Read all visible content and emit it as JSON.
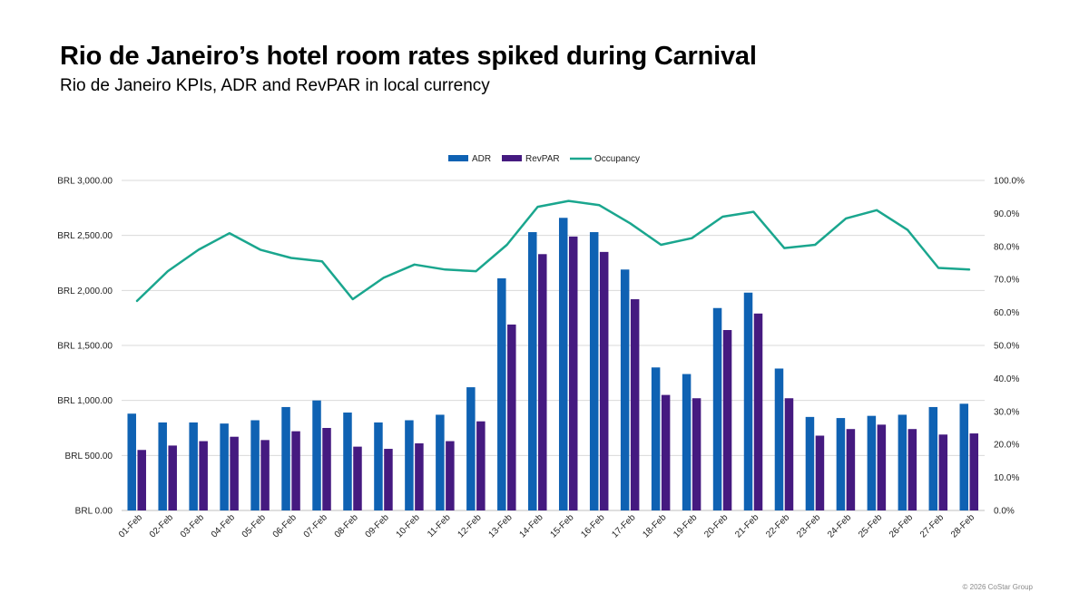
{
  "title": "Rio de Janeiro’s hotel room rates spiked during Carnival",
  "subtitle": "Rio de Janeiro KPIs, ADR and RevPAR in local currency",
  "copyright": "© 2026 CoStar Group",
  "colors": {
    "adr": "#0f62b3",
    "revpar": "#451a80",
    "occupancy": "#1aa68e",
    "grid": "#d9d9d9"
  },
  "chart_data": {
    "type": "bar",
    "categories": [
      "01-Feb",
      "02-Feb",
      "03-Feb",
      "04-Feb",
      "05-Feb",
      "06-Feb",
      "07-Feb",
      "08-Feb",
      "09-Feb",
      "10-Feb",
      "11-Feb",
      "12-Feb",
      "13-Feb",
      "14-Feb",
      "15-Feb",
      "16-Feb",
      "17-Feb",
      "18-Feb",
      "19-Feb",
      "20-Feb",
      "21-Feb",
      "22-Feb",
      "23-Feb",
      "24-Feb",
      "25-Feb",
      "26-Feb",
      "27-Feb",
      "28-Feb"
    ],
    "series": [
      {
        "name": "ADR",
        "type": "bar",
        "axis": "left",
        "values": [
          880,
          800,
          800,
          790,
          820,
          940,
          1000,
          890,
          800,
          820,
          870,
          1120,
          2110,
          2530,
          2660,
          2530,
          2190,
          1300,
          1240,
          1840,
          1980,
          1290,
          850,
          840,
          860,
          870,
          940,
          970
        ]
      },
      {
        "name": "RevPAR",
        "type": "bar",
        "axis": "left",
        "values": [
          550,
          590,
          630,
          670,
          640,
          720,
          750,
          580,
          560,
          610,
          630,
          810,
          1690,
          2330,
          2490,
          2350,
          1920,
          1050,
          1020,
          1640,
          1790,
          1020,
          680,
          740,
          780,
          740,
          690,
          700
        ]
      },
      {
        "name": "Occupancy",
        "type": "line",
        "axis": "right",
        "values": [
          63.5,
          72.5,
          79.0,
          84.0,
          79.0,
          76.5,
          75.5,
          64.0,
          70.5,
          74.5,
          73.0,
          72.5,
          80.5,
          92.0,
          93.8,
          92.5,
          87.0,
          80.5,
          82.5,
          89.0,
          90.5,
          79.5,
          80.5,
          88.5,
          91.0,
          85.0,
          73.5,
          73.0
        ]
      }
    ],
    "y_left": {
      "ylim": [
        0,
        3000
      ],
      "ticks": [
        0,
        500,
        1000,
        1500,
        2000,
        2500,
        3000
      ],
      "tick_labels": [
        "BRL 0.00",
        "BRL 500.00",
        "BRL 1,000.00",
        "BRL 1,500.00",
        "BRL 2,000.00",
        "BRL 2,500.00",
        "BRL 3,000.00"
      ]
    },
    "y_right": {
      "ylim": [
        0,
        100
      ],
      "ticks": [
        0,
        10,
        20,
        30,
        40,
        50,
        60,
        70,
        80,
        90,
        100
      ],
      "tick_labels": [
        "0.0%",
        "10.0%",
        "20.0%",
        "30.0%",
        "40.0%",
        "50.0%",
        "60.0%",
        "70.0%",
        "80.0%",
        "90.0%",
        "100.0%"
      ]
    },
    "legend": [
      "ADR",
      "RevPAR",
      "Occupancy"
    ],
    "legend_position": "top-center",
    "grid": true
  }
}
